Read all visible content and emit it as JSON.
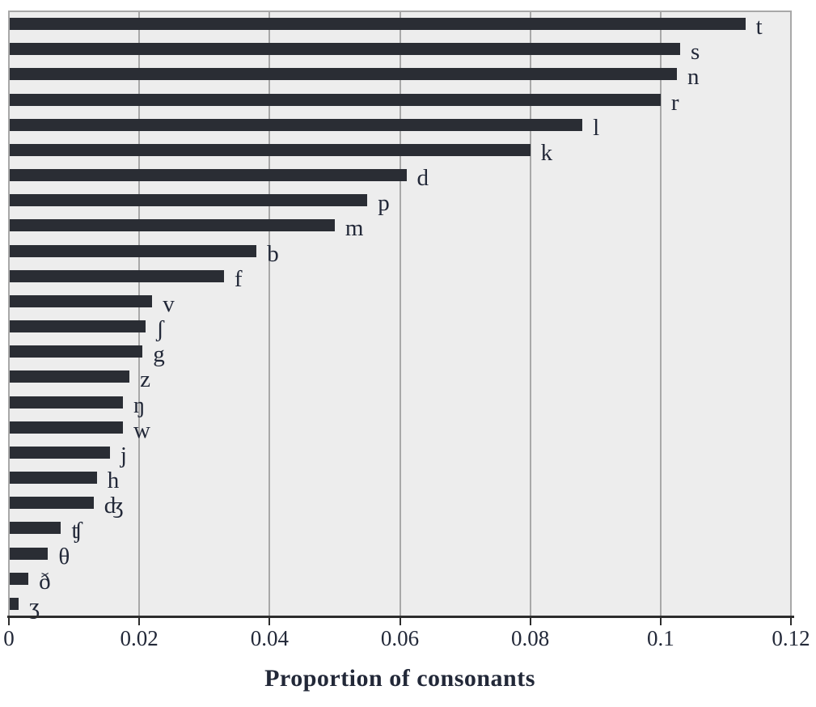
{
  "chart_data": {
    "type": "bar",
    "orientation": "horizontal",
    "title": "",
    "xlabel": "Proportion of consonants",
    "ylabel": "",
    "categories": [
      "t",
      "s",
      "n",
      "r",
      "l",
      "k",
      "d",
      "p",
      "m",
      "b",
      "f",
      "v",
      "ʃ",
      "g",
      "z",
      "ŋ",
      "w",
      "j",
      "h",
      "ʤ",
      "ʧ",
      "θ",
      "ð",
      "ʒ"
    ],
    "values": [
      0.113,
      0.103,
      0.1025,
      0.1,
      0.088,
      0.08,
      0.061,
      0.055,
      0.05,
      0.038,
      0.033,
      0.022,
      0.021,
      0.0205,
      0.0185,
      0.0175,
      0.0175,
      0.0155,
      0.0135,
      0.013,
      0.008,
      0.006,
      0.003,
      0.0015
    ],
    "xlim": [
      0,
      0.12
    ],
    "x_ticks": [
      "0",
      "0.02",
      "0.04",
      "0.06",
      "0.08",
      "0.1",
      "0.12"
    ],
    "x_tick_values": [
      0,
      0.02,
      0.04,
      0.06,
      0.08,
      0.1,
      0.12
    ],
    "grid": "vertical-gridlines-on",
    "legend": "none",
    "bar_labels_position": "right-of-bar-end"
  },
  "colors": {
    "bar": "#2a2d34",
    "plot_background": "#ededed",
    "gridline": "#a8a8a8",
    "frame": "#a8a8a8",
    "axis_line": "#2d2d2d",
    "text": "#222838",
    "page_background": "#ffffff"
  }
}
